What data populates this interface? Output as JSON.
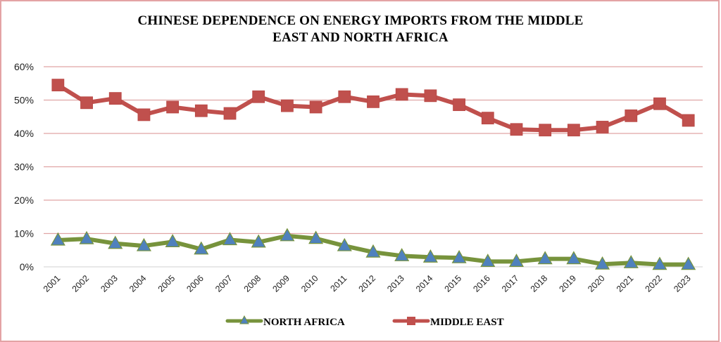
{
  "chart_data": {
    "type": "line",
    "title_lines": [
      "CHINESE DEPENDENCE ON ENERGY IMPORTS FROM THE MIDDLE",
      "EAST AND NORTH AFRICA"
    ],
    "xlabel": "",
    "ylabel": "",
    "x": [
      "2001",
      "2002",
      "2003",
      "2004",
      "2005",
      "2006",
      "2007",
      "2008",
      "2009",
      "2010",
      "2011",
      "2012",
      "2013",
      "2014",
      "2015",
      "2016",
      "2017",
      "2018",
      "2019",
      "2020",
      "2021",
      "2022",
      "2023"
    ],
    "ylim": [
      0,
      60
    ],
    "yticks": [
      0,
      10,
      20,
      30,
      40,
      50,
      60
    ],
    "ytick_labels": [
      "0%",
      "10%",
      "20%",
      "30%",
      "40%",
      "50%",
      "60%"
    ],
    "grid": true,
    "legend_position": "bottom",
    "series": [
      {
        "name": "NORTH AFRICA",
        "marker": "triangle",
        "line_color": "#77933c",
        "marker_color": "#4f81bd",
        "values": [
          8.0,
          8.4,
          7.0,
          6.3,
          7.5,
          5.3,
          8.1,
          7.4,
          9.3,
          8.5,
          6.3,
          4.4,
          3.3,
          2.9,
          2.7,
          1.6,
          1.6,
          2.4,
          2.4,
          0.8,
          1.2,
          0.7,
          0.7
        ]
      },
      {
        "name": "MIDDLE EAST",
        "marker": "square",
        "line_color": "#c0504d",
        "marker_color": "#c0504d",
        "values": [
          54.5,
          49.2,
          50.5,
          45.6,
          47.9,
          46.8,
          46.0,
          51.0,
          48.3,
          47.9,
          51.0,
          49.5,
          51.7,
          51.3,
          48.6,
          44.6,
          41.2,
          41.0,
          41.0,
          41.9,
          45.3,
          48.9,
          43.9
        ]
      }
    ]
  },
  "colors": {
    "gridline": "#e0a4a4",
    "baseline": "#d9d9d9",
    "frame_border": "#e3a3a5"
  }
}
